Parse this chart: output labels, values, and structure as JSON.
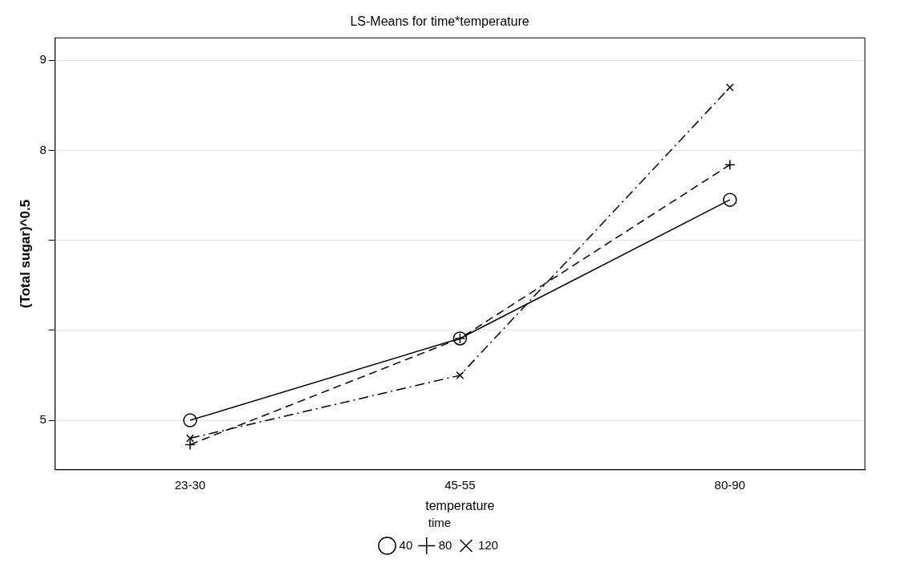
{
  "chart_data": {
    "type": "line",
    "title": "LS-Means for time*temperature",
    "xlabel": "temperature",
    "ylabel": "(Total sugar)^0.5",
    "legend_title": "time",
    "legend": "bottom",
    "grid": "y",
    "categories": [
      "23-30",
      "45-55",
      "80-90"
    ],
    "ylim": [
      4.45,
      9.25
    ],
    "yticks": [
      5,
      {
        "value": 6,
        "label": null
      },
      {
        "value": 7,
        "label": null
      },
      8,
      9
    ],
    "series": [
      {
        "name": "40",
        "color": "#000000",
        "marker": "circle",
        "line_style": "solid",
        "values": [
          5.0,
          5.91,
          7.45
        ]
      },
      {
        "name": "80",
        "color": "#000000",
        "marker": "plus",
        "line_style": "dashed",
        "values": [
          4.73,
          5.91,
          7.84
        ]
      },
      {
        "name": "120",
        "color": "#000000",
        "marker": "cross",
        "line_style": "dashdot",
        "values": [
          4.8,
          5.5,
          8.7
        ]
      }
    ]
  }
}
